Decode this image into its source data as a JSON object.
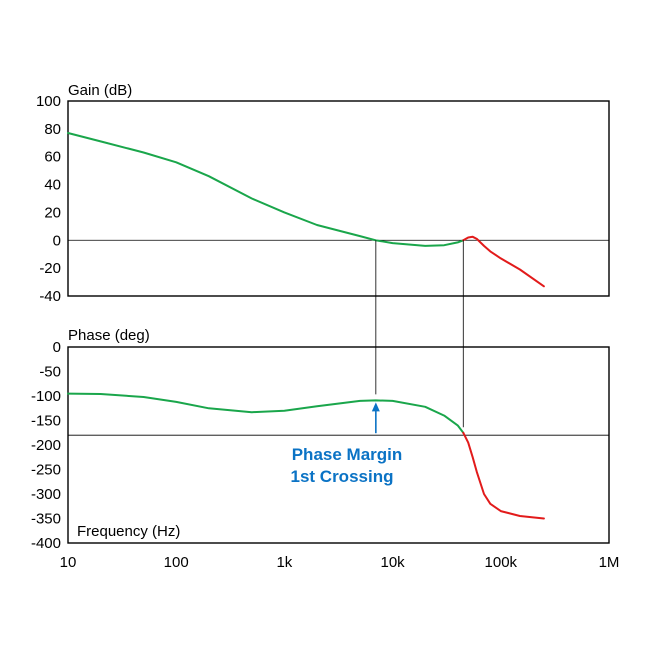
{
  "chart_data": [
    {
      "type": "line",
      "ylabel": "Gain (dB)",
      "xscale": "log",
      "xlim": [
        10,
        1000000
      ],
      "ylim": [
        -40,
        100
      ],
      "yticks": [
        "100",
        "80",
        "60",
        "40",
        "20",
        "0",
        "-20",
        "-40"
      ],
      "ytick_values": [
        100,
        80,
        60,
        40,
        20,
        0,
        -20,
        -40
      ],
      "reference_line": 0,
      "series": [
        {
          "color": "#1aa64b",
          "x": [
            10,
            20,
            50,
            100,
            200,
            500,
            1000,
            2000,
            5000,
            7000,
            10000,
            20000,
            30000,
            40000,
            45000
          ],
          "y": [
            77,
            71,
            63,
            56,
            46,
            30,
            20,
            11,
            3,
            0,
            -2,
            -4,
            -3.5,
            -1.5,
            0
          ]
        },
        {
          "color": "#e21b1b",
          "x": [
            45000,
            50000,
            55000,
            60000,
            70000,
            80000,
            100000,
            150000,
            250000
          ],
          "y": [
            0,
            2,
            2.5,
            1,
            -4,
            -8,
            -13,
            -21,
            -33
          ]
        }
      ]
    },
    {
      "type": "line",
      "ylabel": "Phase (deg)",
      "xlabel": "Frequency (Hz)",
      "xscale": "log",
      "xlim": [
        10,
        1000000
      ],
      "ylim": [
        -400,
        0
      ],
      "xticks": [
        "10",
        "100",
        "1k",
        "10k",
        "100k",
        "1M"
      ],
      "xtick_values": [
        10,
        100,
        1000,
        10000,
        100000,
        1000000
      ],
      "yticks": [
        "0",
        "-50",
        "-100",
        "-150",
        "-200",
        "-250",
        "-300",
        "-350",
        "-400"
      ],
      "ytick_values": [
        0,
        -50,
        -100,
        -150,
        -200,
        -250,
        -300,
        -350,
        -400
      ],
      "reference_line": -180,
      "series": [
        {
          "color": "#1aa64b",
          "x": [
            10,
            20,
            50,
            100,
            200,
            500,
            1000,
            2000,
            5000,
            7000,
            10000,
            20000,
            30000,
            40000,
            45000
          ],
          "y": [
            -95,
            -96,
            -102,
            -112,
            -125,
            -133,
            -130,
            -121,
            -110,
            -109,
            -110,
            -122,
            -140,
            -160,
            -175
          ]
        },
        {
          "color": "#e21b1b",
          "x": [
            45000,
            50000,
            55000,
            60000,
            70000,
            80000,
            100000,
            150000,
            250000
          ],
          "y": [
            -175,
            -195,
            -225,
            -255,
            -300,
            -320,
            -335,
            -345,
            -350
          ]
        }
      ],
      "annotation": {
        "lines": [
          "Phase Margin",
          "1st Crossing"
        ],
        "color": "#0b73c5",
        "x": 7000,
        "from_y": -180,
        "to_y": -109
      }
    }
  ],
  "crossover_markers": [
    7000,
    45000
  ]
}
